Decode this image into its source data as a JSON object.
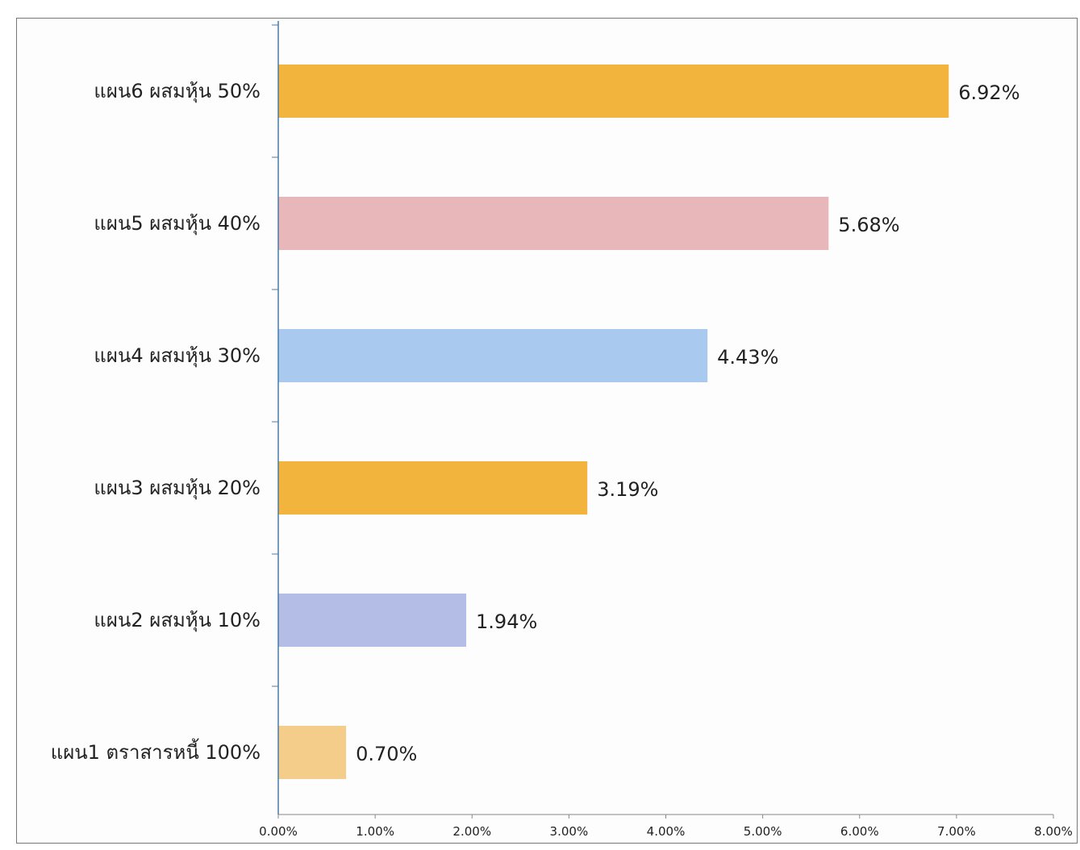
{
  "chart_data": {
    "type": "bar",
    "orientation": "horizontal",
    "categories": [
      "แผน6  ผสมหุ้น 50%",
      "แผน5  ผสมหุ้น 40%",
      "แผน4  ผสมหุ้น 30%",
      "แผน3  ผสมหุ้น 20%",
      "แผน2  ผสมหุ้น 10%",
      "แผน1 ตราสารหนี้ 100%"
    ],
    "values": [
      6.92,
      5.68,
      4.43,
      3.19,
      1.94,
      0.7
    ],
    "value_labels": [
      "6.92%",
      "5.68%",
      "4.43%",
      "3.19%",
      "1.94%",
      "0.70%"
    ],
    "colors": [
      "#f2b43c",
      "#e8b7b9",
      "#a9c9ef",
      "#f2b43c",
      "#b3bde6",
      "#f5cd8a"
    ],
    "xlim": [
      0,
      8
    ],
    "x_ticks": [
      0,
      1,
      2,
      3,
      4,
      5,
      6,
      7,
      8
    ],
    "x_tick_labels": [
      "0.00%",
      "1.00%",
      "2.00%",
      "3.00%",
      "4.00%",
      "5.00%",
      "6.00%",
      "7.00%",
      "8.00%"
    ],
    "title": "",
    "xlabel": "",
    "ylabel": "",
    "grid": false,
    "legend": "none"
  }
}
